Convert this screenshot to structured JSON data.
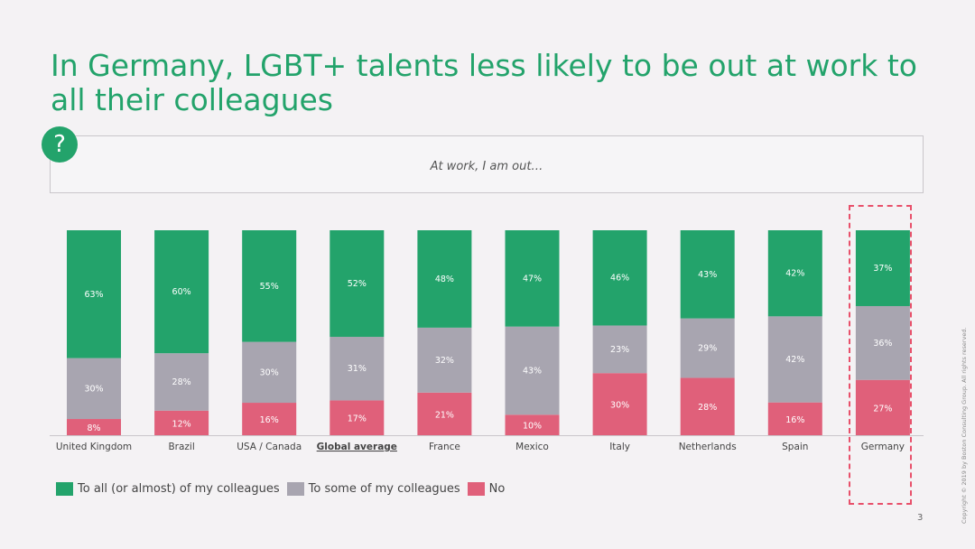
{
  "title": "In Germany, LGBT+ talents less likely to be out at work to all their colleagues",
  "badge_symbol": "?",
  "question": "At work, I am out…",
  "chart_data": {
    "type": "bar",
    "stacked": true,
    "percent": true,
    "categories": [
      "United Kingdom",
      "Brazil",
      "USA / Canada",
      "Global average",
      "France",
      "Mexico",
      "Italy",
      "Netherlands",
      "Spain",
      "Germany"
    ],
    "series": [
      {
        "name": "No",
        "color": "#e0607a",
        "values": [
          8,
          12,
          16,
          17,
          21,
          10,
          30,
          28,
          16,
          27
        ]
      },
      {
        "name": "To some of my colleagues",
        "color": "#a8a5b0",
        "values": [
          30,
          28,
          30,
          31,
          32,
          43,
          23,
          29,
          42,
          36
        ]
      },
      {
        "name": "To all (or almost) of my colleagues",
        "color": "#23a36b",
        "values": [
          63,
          60,
          55,
          52,
          48,
          47,
          46,
          43,
          42,
          37
        ]
      }
    ],
    "highlighted_category": "Germany",
    "emphasized_category": "Global average",
    "ylim": [
      0,
      100
    ]
  },
  "legend": [
    {
      "label": "To all (or almost) of my colleagues",
      "color": "#23a36b"
    },
    {
      "label": "To some of my colleagues",
      "color": "#a8a5b0"
    },
    {
      "label": "No",
      "color": "#e0607a"
    }
  ],
  "copyright": "Copyright © 2019 by Boston Consulting Group. All rights reserved.",
  "page_number": "3"
}
